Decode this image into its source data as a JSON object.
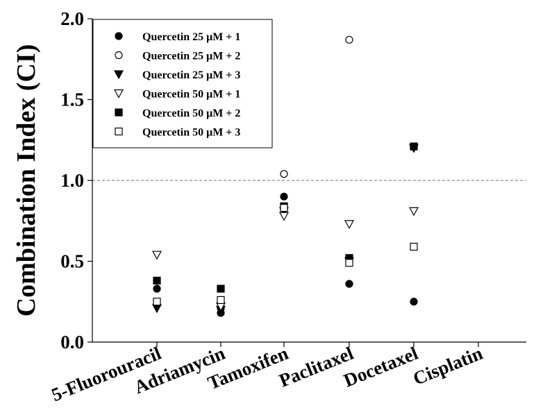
{
  "chart_data": {
    "type": "scatter",
    "title": "",
    "xlabel": "",
    "ylabel": "Combination Index (CI)",
    "ylim": [
      0.0,
      2.0
    ],
    "yticks": [
      "0.0",
      "0.5",
      "1.0",
      "1.5",
      "2.0"
    ],
    "categories": [
      "5-Fluorouracil",
      "Adriamycin",
      "Tamoxifen",
      "Paclitaxel",
      "Docetaxel",
      "Cisplatin"
    ],
    "reference_line": 1.0,
    "legend_position": "top-left",
    "series": [
      {
        "name": "Quercetin 25 μM + 1",
        "marker": "circle-filled",
        "values": [
          0.33,
          0.18,
          0.9,
          0.36,
          0.25,
          null
        ]
      },
      {
        "name": "Quercetin 25 μM + 2",
        "marker": "circle-open",
        "values": [
          0.24,
          0.21,
          1.04,
          1.87,
          1.21,
          null
        ]
      },
      {
        "name": "Quercetin 25 μM + 3",
        "marker": "triangle-filled",
        "values": [
          0.21,
          0.2,
          0.81,
          0.5,
          1.2,
          null
        ]
      },
      {
        "name": "Quercetin 50 μM + 1",
        "marker": "triangle-open",
        "values": [
          0.54,
          0.22,
          0.78,
          0.73,
          0.81,
          null
        ]
      },
      {
        "name": "Quercetin 50 μM + 2",
        "marker": "square-filled",
        "values": [
          0.38,
          0.33,
          0.84,
          0.52,
          1.21,
          null
        ]
      },
      {
        "name": "Quercetin 50 μM + 3",
        "marker": "square-open",
        "values": [
          0.25,
          0.26,
          0.83,
          0.49,
          0.59,
          null
        ]
      }
    ],
    "colors": {
      "axis": "#000000",
      "marker": "#000000",
      "reference_line": "#8a8a8a"
    }
  }
}
